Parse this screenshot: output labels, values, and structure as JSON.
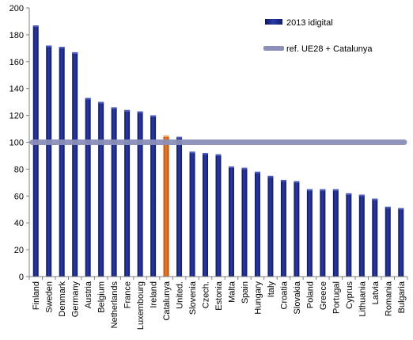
{
  "chart_data": {
    "type": "bar",
    "categories": [
      "Finland",
      "Sweden",
      "Denmark",
      "Germany",
      "Austria",
      "Belgium",
      "Netherlands",
      "France",
      "Luxembourg",
      "Ireland",
      "Catalunya",
      "United.",
      "Slovenia",
      "Czech.",
      "Estonia",
      "Malta",
      "Spain",
      "Hungary",
      "Italy",
      "Croatia",
      "Slovakia",
      "Poland",
      "Greece",
      "Portugal",
      "Cyprus",
      "Lithuania",
      "Latvia",
      "Romania",
      "Bulgaria"
    ],
    "series": [
      {
        "name": "2013 idigital",
        "values": [
          187,
          172,
          171,
          167,
          133,
          130,
          126,
          124,
          123,
          120,
          105,
          104,
          93,
          92,
          91,
          82,
          81,
          78,
          75,
          72,
          71,
          65,
          65,
          65,
          62,
          61,
          58,
          52,
          51
        ],
        "color": "#1f2d8c",
        "highlight": {
          "category": "Catalunya",
          "color": "#d95f0e"
        }
      },
      {
        "name": "ref. UE28 + Catalunya",
        "type": "line",
        "value": 100,
        "color": "#8c8fba"
      }
    ],
    "ylim": [
      0,
      200
    ],
    "yticks": [
      0,
      20,
      40,
      60,
      80,
      100,
      120,
      140,
      160,
      180,
      200
    ],
    "xlabel": "",
    "ylabel": "",
    "grid": false,
    "legend_position": "top-right"
  }
}
